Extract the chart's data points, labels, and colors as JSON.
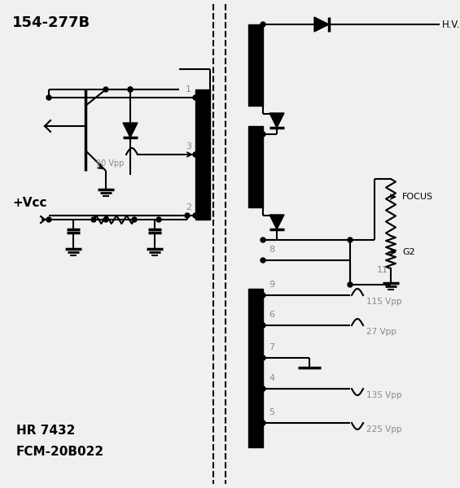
{
  "title": "154-277B",
  "subtitle_hr": "HR 7432",
  "subtitle_fcm": "FCM-20B022",
  "bg_color": "#f0f0f0",
  "line_color": "#000000",
  "focus_label": "FOCUS",
  "g2_label": "G2",
  "hv_label": "H.V.",
  "vcc_label": "+Vcc",
  "v90": "90 Vpp",
  "v115": "115 Vpp",
  "v27": "27 Vpp",
  "v135": "135 Vpp",
  "v225": "225 Vpp",
  "gray": "#888888"
}
